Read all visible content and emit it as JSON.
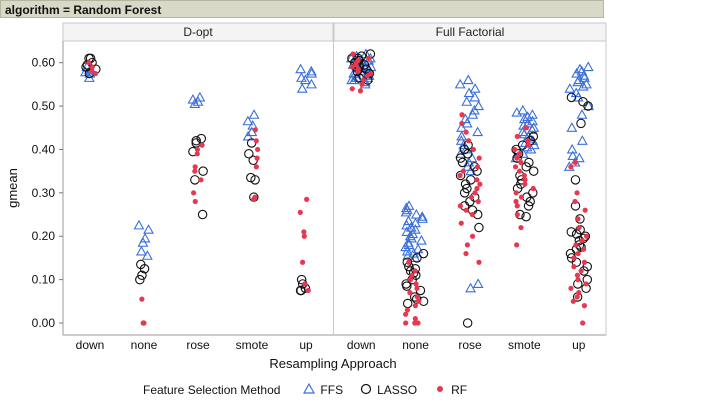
{
  "header": {
    "title": "algorithm = Random Forest"
  },
  "legend": {
    "title": "Feature Selection Method",
    "items": [
      {
        "label": "FFS",
        "symbol": "triangle",
        "color": "#3a6fd8"
      },
      {
        "label": "LASSO",
        "symbol": "circle",
        "color": "#111111"
      },
      {
        "label": "RF",
        "symbol": "dot",
        "color": "#e8384f"
      }
    ]
  },
  "chart_data": {
    "type": "scatter",
    "xlabel": "Resampling Approach",
    "ylabel": "gmean",
    "ylim": [
      0.0,
      0.65
    ],
    "yticks": [
      "0.00",
      "0.10",
      "0.20",
      "0.30",
      "0.40",
      "0.50",
      "0.60"
    ],
    "categories": [
      "down",
      "none",
      "rose",
      "smote",
      "up"
    ],
    "grid": false,
    "legend_position": "bottom",
    "panels": [
      {
        "name": "D-opt",
        "series": [
          {
            "name": "FFS",
            "values": {
              "down": [
                0.575,
                0.585,
                0.578,
                0.59,
                0.565,
                0.58
              ],
              "none": [
                0.225,
                0.215,
                0.195,
                0.185,
                0.165,
                0.155
              ],
              "rose": [
                0.52,
                0.515,
                0.51,
                0.505
              ],
              "smote": [
                0.48,
                0.465,
                0.455,
                0.44,
                0.43
              ],
              "up": [
                0.585,
                0.58,
                0.575,
                0.565,
                0.56,
                0.55,
                0.54
              ]
            }
          },
          {
            "name": "LASSO",
            "values": {
              "down": [
                0.61,
                0.61,
                0.6,
                0.595,
                0.59,
                0.585,
                0.575
              ],
              "none": [
                0.135,
                0.125,
                0.11,
                0.1
              ],
              "rose": [
                0.425,
                0.42,
                0.415,
                0.395,
                0.35,
                0.33,
                0.25
              ],
              "smote": [
                0.415,
                0.39,
                0.375,
                0.335,
                0.33,
                0.29
              ],
              "up": [
                0.1,
                0.09,
                0.08,
                0.075,
                0.075
              ]
            }
          },
          {
            "name": "RF",
            "values": {
              "down": [
                0.6,
                0.59,
                0.58,
                0.575
              ],
              "none": [
                0.055,
                0.0,
                0.0,
                0.0
              ],
              "rose": [
                0.41,
                0.4,
                0.39,
                0.36,
                0.35,
                0.33,
                0.3,
                0.28
              ],
              "smote": [
                0.445,
                0.42,
                0.4,
                0.38,
                0.36,
                0.29,
                0.285
              ],
              "up": [
                0.285,
                0.255,
                0.21,
                0.2,
                0.14,
                0.09,
                0.075
              ]
            }
          }
        ]
      },
      {
        "name": "Full Factorial",
        "series": [
          {
            "name": "FFS",
            "values": {
              "down": [
                0.62,
                0.615,
                0.61,
                0.61,
                0.605,
                0.6,
                0.6,
                0.595,
                0.59,
                0.59,
                0.585,
                0.58,
                0.58,
                0.575,
                0.57,
                0.57,
                0.565,
                0.56,
                0.56,
                0.555,
                0.55,
                0.59,
                0.605,
                0.575,
                0.565
              ],
              "none": [
                0.27,
                0.265,
                0.26,
                0.255,
                0.25,
                0.245,
                0.24,
                0.235,
                0.23,
                0.225,
                0.22,
                0.215,
                0.21,
                0.205,
                0.2,
                0.195,
                0.19,
                0.185,
                0.18,
                0.175,
                0.17,
                0.165,
                0.16,
                0.155,
                0.15
              ],
              "rose": [
                0.56,
                0.55,
                0.54,
                0.53,
                0.52,
                0.51,
                0.5,
                0.49,
                0.48,
                0.47,
                0.46,
                0.45,
                0.44,
                0.43,
                0.42,
                0.41,
                0.4,
                0.39,
                0.38,
                0.37,
                0.36,
                0.35,
                0.09,
                0.08
              ],
              "smote": [
                0.49,
                0.485,
                0.48,
                0.475,
                0.47,
                0.465,
                0.46,
                0.455,
                0.45,
                0.445,
                0.44,
                0.435,
                0.43,
                0.425,
                0.42,
                0.415,
                0.41,
                0.405,
                0.4,
                0.39,
                0.38
              ],
              "up": [
                0.59,
                0.585,
                0.58,
                0.575,
                0.57,
                0.565,
                0.56,
                0.555,
                0.55,
                0.545,
                0.54,
                0.53,
                0.52,
                0.5,
                0.48,
                0.45,
                0.42,
                0.4,
                0.385,
                0.38,
                0.37,
                0.36
              ]
            }
          },
          {
            "name": "LASSO",
            "values": {
              "down": [
                0.62,
                0.615,
                0.61,
                0.605,
                0.6,
                0.595,
                0.59,
                0.585,
                0.58,
                0.575,
                0.57,
                0.565,
                0.56,
                0.6,
                0.61,
                0.59
              ],
              "none": [
                0.16,
                0.15,
                0.14,
                0.13,
                0.125,
                0.12,
                0.115,
                0.11,
                0.1,
                0.09,
                0.085,
                0.075,
                0.06,
                0.055,
                0.05,
                0.045
              ],
              "rose": [
                0.41,
                0.4,
                0.39,
                0.38,
                0.37,
                0.36,
                0.35,
                0.34,
                0.33,
                0.32,
                0.31,
                0.3,
                0.29,
                0.28,
                0.27,
                0.26,
                0.25,
                0.22,
                0.0
              ],
              "smote": [
                0.43,
                0.42,
                0.41,
                0.4,
                0.39,
                0.38,
                0.37,
                0.36,
                0.35,
                0.34,
                0.33,
                0.32,
                0.31,
                0.3,
                0.29,
                0.28,
                0.27,
                0.25,
                0.245
              ],
              "up": [
                0.52,
                0.51,
                0.5,
                0.46,
                0.33,
                0.27,
                0.24,
                0.215,
                0.21,
                0.205,
                0.2,
                0.195,
                0.19,
                0.18,
                0.175,
                0.17,
                0.16,
                0.15,
                0.14,
                0.13,
                0.12,
                0.1,
                0.09,
                0.08,
                0.06
              ]
            }
          },
          {
            "name": "RF",
            "values": {
              "down": [
                0.62,
                0.61,
                0.605,
                0.6,
                0.595,
                0.59,
                0.585,
                0.58,
                0.575,
                0.57,
                0.56,
                0.55,
                0.54,
                0.535
              ],
              "none": [
                0.14,
                0.12,
                0.11,
                0.1,
                0.09,
                0.08,
                0.07,
                0.06,
                0.05,
                0.04,
                0.03,
                0.02,
                0.01,
                0.0,
                0.0,
                0.0
              ],
              "rose": [
                0.48,
                0.46,
                0.44,
                0.42,
                0.4,
                0.38,
                0.36,
                0.35,
                0.34,
                0.33,
                0.32,
                0.31,
                0.3,
                0.29,
                0.28,
                0.27,
                0.26,
                0.25,
                0.23,
                0.2,
                0.18,
                0.16,
                0.14
              ],
              "smote": [
                0.45,
                0.43,
                0.42,
                0.41,
                0.4,
                0.39,
                0.38,
                0.37,
                0.36,
                0.35,
                0.34,
                0.33,
                0.32,
                0.31,
                0.3,
                0.29,
                0.28,
                0.27,
                0.25,
                0.22,
                0.18
              ],
              "up": [
                0.37,
                0.36,
                0.3,
                0.28,
                0.26,
                0.24,
                0.22,
                0.2,
                0.19,
                0.18,
                0.17,
                0.16,
                0.15,
                0.14,
                0.13,
                0.12,
                0.11,
                0.1,
                0.09,
                0.08,
                0.07,
                0.06,
                0.05,
                0.04,
                0.0
              ]
            }
          }
        ]
      }
    ]
  }
}
